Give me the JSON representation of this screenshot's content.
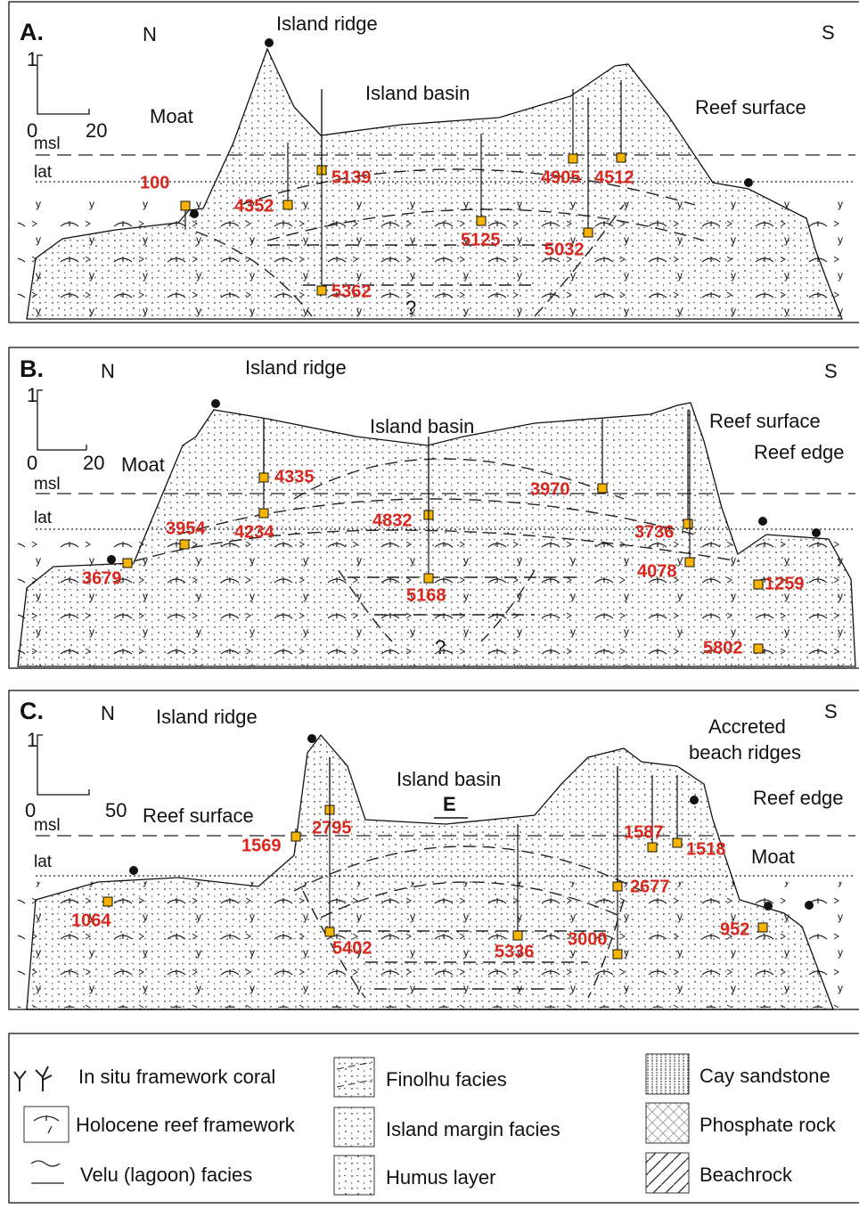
{
  "panels": [
    {
      "label": "A.",
      "north": "N",
      "south": "S",
      "scale": {
        "vertical": "1",
        "origin": "0",
        "horizontal": "20"
      },
      "levels": [
        "msl",
        "lat"
      ],
      "annotations": [
        "Island ridge",
        "Island basin",
        "Moat",
        "Reef surface",
        "?"
      ],
      "samples": [
        100,
        4352,
        5139,
        5362,
        5125,
        5032,
        4905,
        4512
      ]
    },
    {
      "label": "B.",
      "north": "N",
      "south": "S",
      "scale": {
        "vertical": "1",
        "origin": "0",
        "horizontal": "20"
      },
      "levels": [
        "msl",
        "lat"
      ],
      "annotations": [
        "Island ridge",
        "Island basin",
        "Moat",
        "Reef surface",
        "Reef edge",
        "?"
      ],
      "samples": [
        3679,
        3954,
        4234,
        4335,
        4832,
        5168,
        3970,
        3736,
        4078,
        1259,
        5802
      ]
    },
    {
      "label": "C.",
      "north": "N",
      "south": "S",
      "scale": {
        "vertical": "1",
        "origin": "0",
        "horizontal": "50"
      },
      "levels": [
        "msl",
        "lat"
      ],
      "annotations": [
        "Island ridge",
        "Island basin",
        "E",
        "Reef surface",
        "Accreted",
        "beach ridges",
        "Reef edge",
        "Moat"
      ],
      "samples": [
        1064,
        1569,
        2795,
        5402,
        5336,
        3000,
        2677,
        1587,
        1518,
        952
      ]
    }
  ],
  "legend": [
    "In situ framework coral",
    "Holocene reef framework",
    "Velu (lagoon) facies",
    "Finolhu  facies",
    "Island margin facies",
    "Humus layer",
    "Cay sandstone",
    "Phosphate rock",
    "Beachrock"
  ]
}
